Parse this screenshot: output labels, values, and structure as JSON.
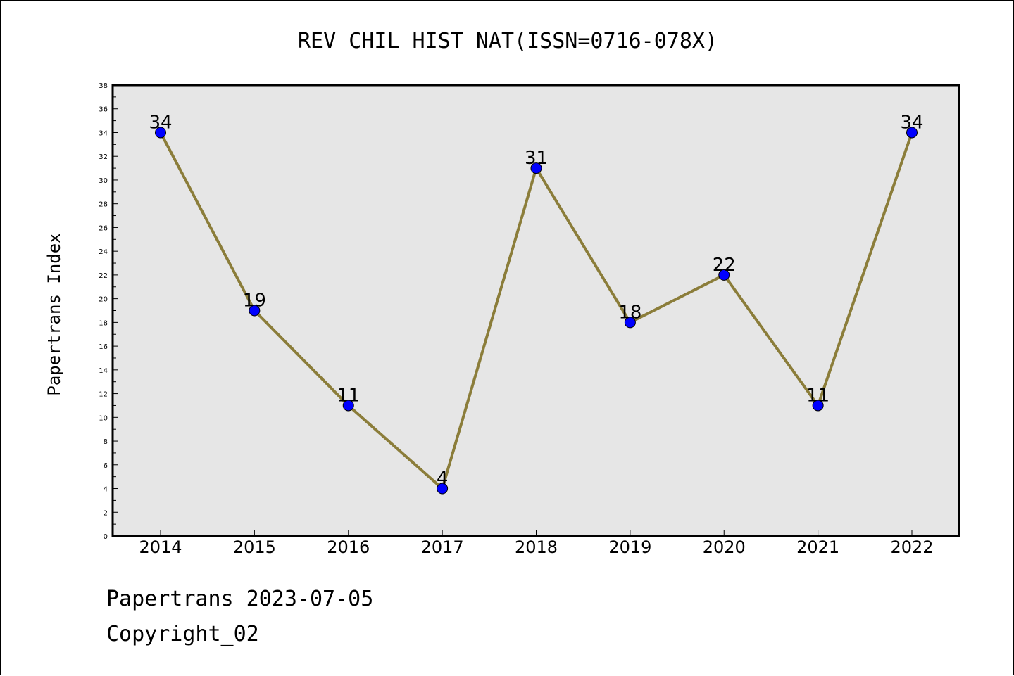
{
  "chart_data": {
    "type": "line",
    "title": "REV CHIL HIST NAT(ISSN=0716-078X)",
    "xlabel": "",
    "ylabel": "Papertrans Index",
    "categories": [
      "2014",
      "2015",
      "2016",
      "2017",
      "2018",
      "2019",
      "2020",
      "2021",
      "2022"
    ],
    "series": [
      {
        "values": [
          34,
          19,
          11,
          4,
          31,
          18,
          22,
          11,
          34
        ],
        "line_color": "#8b7d3a",
        "marker_color": "#0000ff"
      }
    ],
    "ylim": [
      0,
      38
    ],
    "yticks": [
      0,
      2,
      4,
      6,
      8,
      10,
      12,
      14,
      16,
      18,
      20,
      22,
      24,
      26,
      28,
      30,
      32,
      34,
      36,
      38
    ],
    "grid": false,
    "background": "#e6e6e6"
  },
  "footer": {
    "line1": "Papertrans 2023-07-05",
    "line2": "Copyright_02"
  }
}
